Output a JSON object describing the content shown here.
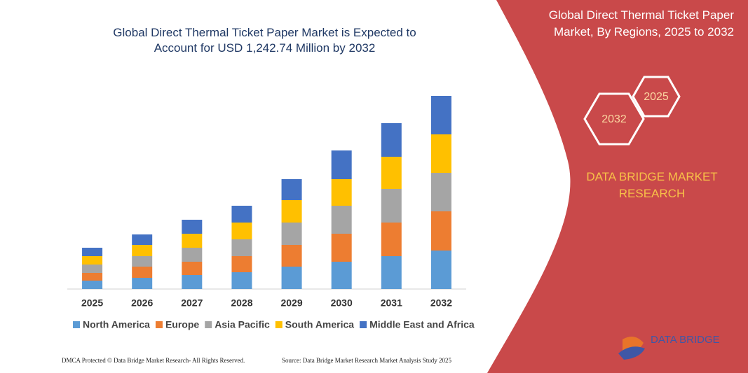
{
  "chart_data": {
    "type": "stacked-bar",
    "title": "Global Direct Thermal Ticket Paper Market is Expected to Account for USD 1,242.74 Million by 2032",
    "categories": [
      "2025",
      "2026",
      "2027",
      "2028",
      "2029",
      "2030",
      "2031",
      "2032"
    ],
    "ylim": [
      0,
      280
    ],
    "legend": "bottom",
    "series": [
      {
        "name": "North America",
        "color": "#5b9bd5",
        "values": [
          12,
          16,
          20,
          24,
          32,
          39,
          47,
          55
        ]
      },
      {
        "name": "Europe",
        "color": "#ed7d31",
        "values": [
          11,
          16,
          19,
          23,
          31,
          40,
          48,
          56
        ]
      },
      {
        "name": "Asia Pacific",
        "color": "#a5a5a5",
        "values": [
          12,
          15,
          20,
          24,
          32,
          40,
          48,
          55
        ]
      },
      {
        "name": "South America",
        "color": "#ffc000",
        "values": [
          12,
          16,
          20,
          24,
          32,
          38,
          46,
          55
        ]
      },
      {
        "name": "Middle East and Africa",
        "color": "#4472c4",
        "values": [
          12,
          15,
          20,
          24,
          30,
          41,
          48,
          55
        ]
      }
    ]
  },
  "panel": {
    "title": "Global Direct Thermal Ticket Paper Market, By Regions, 2025 to 2032",
    "hexagons": [
      "2025",
      "2032"
    ],
    "brand": "DATA BRIDGE MARKET RESEARCH",
    "logo": "DATA BRIDGE"
  },
  "footer": {
    "left": "DMCA Protected © Data Bridge Market Research- All Rights Reserved.",
    "right": "Source: Data Bridge Market Research Market Analysis Study 2025"
  }
}
